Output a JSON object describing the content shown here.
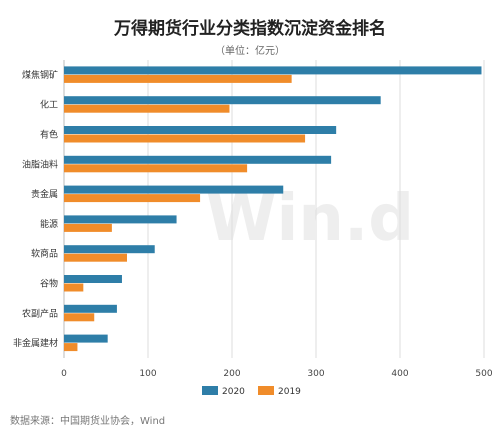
{
  "header": {
    "title": "万得期货行业分类指数沉淀资金排名",
    "subtitle": "（单位：亿元）"
  },
  "footer": {
    "source": "数据来源：中国期货业协会，Wind"
  },
  "watermark": "Win.d",
  "colors": {
    "s2020": "#2e7ea8",
    "s2019": "#f08c2a",
    "grid": "#dddddd",
    "axis": "#bbbbbb"
  },
  "chart_data": {
    "type": "bar",
    "orientation": "horizontal",
    "categories": [
      "煤焦钢矿",
      "化工",
      "有色",
      "油脂油料",
      "贵金属",
      "能源",
      "软商品",
      "谷物",
      "农副产品",
      "非金属建材"
    ],
    "series": [
      {
        "name": "2020",
        "values": [
          497,
          377,
          324,
          318,
          261,
          134,
          108,
          69,
          63,
          52
        ]
      },
      {
        "name": "2019",
        "values": [
          271,
          197,
          287,
          218,
          162,
          57,
          75,
          23,
          36,
          16
        ]
      }
    ],
    "xlim": [
      0,
      500
    ],
    "xticks": [
      0,
      100,
      200,
      300,
      400,
      500
    ],
    "grid": true,
    "legend_position": "bottom"
  }
}
